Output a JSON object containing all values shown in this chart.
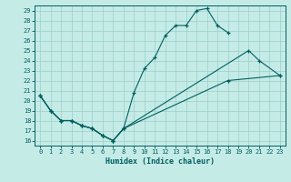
{
  "xlabel": "Humidex (Indice chaleur)",
  "bg_color": "#c5ebe7",
  "grid_color": "#9acfc9",
  "line_color": "#005f5f",
  "xlim": [
    -0.5,
    23.5
  ],
  "ylim": [
    15.5,
    29.5
  ],
  "xticks": [
    0,
    1,
    2,
    3,
    4,
    5,
    6,
    7,
    8,
    9,
    10,
    11,
    12,
    13,
    14,
    15,
    16,
    17,
    18,
    19,
    20,
    21,
    22,
    23
  ],
  "yticks": [
    16,
    17,
    18,
    19,
    20,
    21,
    22,
    23,
    24,
    25,
    26,
    27,
    28,
    29
  ],
  "line1_x": [
    0,
    1,
    2,
    3,
    4,
    5,
    6,
    7,
    8,
    9,
    10,
    11,
    12,
    13,
    14,
    15,
    16,
    17,
    18
  ],
  "line1_y": [
    20.5,
    19.0,
    18.0,
    18.0,
    17.5,
    17.2,
    16.5,
    16.0,
    17.2,
    20.8,
    23.2,
    24.3,
    26.5,
    27.5,
    27.5,
    29.0,
    29.2,
    27.5,
    26.8
  ],
  "line2_x": [
    0,
    1,
    2,
    3,
    4,
    5,
    6,
    7,
    8,
    20,
    21,
    23
  ],
  "line2_y": [
    20.5,
    19.0,
    18.0,
    18.0,
    17.5,
    17.2,
    16.5,
    16.0,
    17.2,
    25.0,
    24.0,
    22.5
  ],
  "line3_x": [
    0,
    1,
    2,
    3,
    4,
    5,
    6,
    7,
    8,
    18,
    23
  ],
  "line3_y": [
    20.5,
    19.0,
    18.0,
    18.0,
    17.5,
    17.2,
    16.5,
    16.0,
    17.2,
    22.0,
    22.5
  ],
  "tick_labelsize": 5.0,
  "xlabel_fontsize": 6.0,
  "linewidth": 0.8,
  "markersize": 3.5
}
